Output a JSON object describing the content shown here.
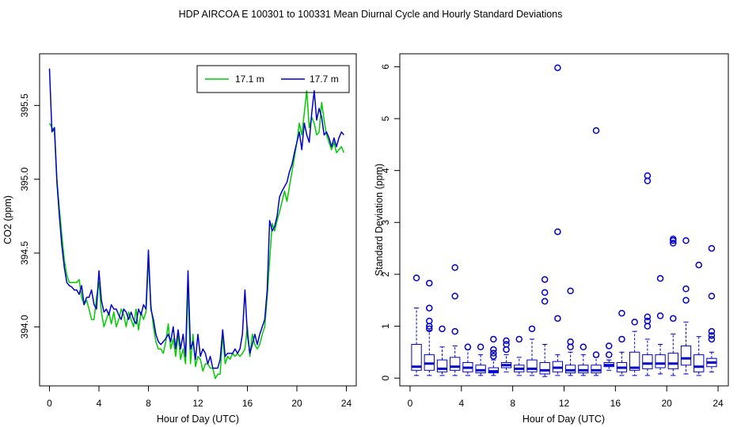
{
  "chart_data": [
    {
      "type": "line",
      "title": "HDP   AIRCOA E   100301 to 100331   Mean Diurnal Cycle and Hourly Standard Deviations",
      "xlabel": "Hour of Day (UTC)",
      "ylabel": "CO2 (ppm)",
      "xlim": [
        -0.8,
        24.8
      ],
      "ylim": [
        393.6,
        395.85
      ],
      "xticks": [
        0,
        4,
        8,
        12,
        16,
        20,
        24
      ],
      "yticks": [
        394.0,
        394.5,
        395.0,
        395.5
      ],
      "ytick_labels": [
        "394.0",
        "394.5",
        "395.0",
        "395.5"
      ],
      "legend_position": "top-right",
      "series": [
        {
          "name": "17.1 m",
          "color": "#00cc00",
          "x": [
            0,
            0.2,
            0.4,
            0.6,
            0.8,
            1.0,
            1.2,
            1.4,
            1.6,
            1.8,
            2.0,
            2.2,
            2.4,
            2.6,
            2.8,
            3.0,
            3.2,
            3.4,
            3.6,
            3.8,
            4.0,
            4.2,
            4.4,
            4.6,
            4.8,
            5.0,
            5.2,
            5.4,
            5.6,
            5.8,
            6.0,
            6.2,
            6.4,
            6.6,
            6.8,
            7.0,
            7.2,
            7.4,
            7.6,
            7.8,
            8.0,
            8.2,
            8.4,
            8.6,
            8.8,
            9.0,
            9.2,
            9.4,
            9.6,
            9.8,
            10.0,
            10.2,
            10.4,
            10.6,
            10.8,
            11.0,
            11.2,
            11.4,
            11.6,
            11.8,
            12.0,
            12.2,
            12.4,
            12.6,
            12.8,
            13.0,
            13.2,
            13.4,
            13.6,
            13.8,
            14.0,
            14.2,
            14.4,
            14.6,
            14.8,
            15.0,
            15.2,
            15.4,
            15.6,
            15.8,
            16.0,
            16.2,
            16.4,
            16.6,
            16.8,
            17.0,
            17.2,
            17.4,
            17.6,
            17.8,
            18.0,
            18.2,
            18.4,
            18.6,
            18.8,
            19.0,
            19.2,
            19.4,
            19.6,
            19.8,
            20.0,
            20.2,
            20.4,
            20.6,
            20.8,
            21.0,
            21.2,
            21.4,
            21.6,
            21.8,
            22.0,
            22.2,
            22.4,
            22.6,
            22.8,
            23.0,
            23.2,
            23.4,
            23.6,
            23.8
          ],
          "values": [
            395.38,
            395.35,
            395.32,
            395.0,
            394.8,
            394.62,
            394.45,
            394.35,
            394.3,
            394.3,
            394.3,
            394.3,
            394.32,
            394.2,
            394.15,
            394.18,
            394.12,
            394.05,
            394.05,
            394.2,
            394.3,
            394.1,
            394.0,
            394.05,
            394.1,
            394.02,
            394.1,
            394.0,
            394.05,
            394.12,
            394.08,
            394.0,
            394.1,
            394.05,
            394.0,
            394.12,
            393.98,
            394.1,
            394.05,
            394.1,
            394.45,
            394.15,
            394.0,
            393.9,
            393.85,
            393.85,
            393.82,
            393.9,
            394.02,
            393.85,
            393.92,
            393.8,
            393.95,
            393.78,
            393.85,
            393.75,
            394.28,
            393.75,
            393.95,
            393.73,
            393.8,
            393.78,
            393.7,
            393.75,
            393.75,
            393.72,
            393.72,
            393.65,
            393.68,
            393.68,
            393.95,
            393.75,
            393.8,
            393.78,
            393.82,
            393.8,
            393.82,
            393.8,
            393.82,
            393.85,
            394.0,
            393.8,
            393.95,
            393.88,
            393.85,
            393.88,
            393.95,
            394.0,
            394.2,
            394.45,
            394.7,
            394.65,
            394.72,
            394.78,
            394.85,
            394.92,
            394.85,
            394.95,
            395.05,
            395.15,
            395.25,
            395.38,
            395.3,
            395.45,
            395.6,
            395.35,
            395.42,
            395.38,
            395.3,
            395.32,
            395.52,
            395.4,
            395.3,
            395.25,
            395.2,
            395.25,
            395.18,
            395.2,
            395.22,
            395.18
          ]
        },
        {
          "name": "17.7 m",
          "color": "#0000cc",
          "x": [
            0,
            0.2,
            0.4,
            0.6,
            0.8,
            1.0,
            1.2,
            1.4,
            1.6,
            1.8,
            2.0,
            2.2,
            2.4,
            2.6,
            2.8,
            3.0,
            3.2,
            3.4,
            3.6,
            3.8,
            4.0,
            4.2,
            4.4,
            4.6,
            4.8,
            5.0,
            5.2,
            5.4,
            5.6,
            5.8,
            6.0,
            6.2,
            6.4,
            6.6,
            6.8,
            7.0,
            7.2,
            7.4,
            7.6,
            7.8,
            8.0,
            8.2,
            8.4,
            8.6,
            8.8,
            9.0,
            9.2,
            9.4,
            9.6,
            9.8,
            10.0,
            10.2,
            10.4,
            10.6,
            10.8,
            11.0,
            11.2,
            11.4,
            11.6,
            11.8,
            12.0,
            12.2,
            12.4,
            12.6,
            12.8,
            13.0,
            13.2,
            13.4,
            13.6,
            13.8,
            14.0,
            14.2,
            14.4,
            14.6,
            14.8,
            15.0,
            15.2,
            15.4,
            15.6,
            15.8,
            16.0,
            16.2,
            16.4,
            16.6,
            16.8,
            17.0,
            17.2,
            17.4,
            17.6,
            17.8,
            18.0,
            18.2,
            18.4,
            18.6,
            18.8,
            19.0,
            19.2,
            19.4,
            19.6,
            19.8,
            20.0,
            20.2,
            20.4,
            20.6,
            20.8,
            21.0,
            21.2,
            21.4,
            21.6,
            21.8,
            22.0,
            22.2,
            22.4,
            22.6,
            22.8,
            23.0,
            23.2,
            23.4,
            23.6,
            23.8
          ],
          "values": [
            395.75,
            395.32,
            395.35,
            394.98,
            394.75,
            394.55,
            394.4,
            394.3,
            394.28,
            394.27,
            394.25,
            394.25,
            394.22,
            394.28,
            394.15,
            394.2,
            394.2,
            394.25,
            394.15,
            394.12,
            394.38,
            394.18,
            394.1,
            394.12,
            394.08,
            394.15,
            394.12,
            394.12,
            394.08,
            394.05,
            394.12,
            394.1,
            394.05,
            394.1,
            394.05,
            394.02,
            394.12,
            394.08,
            394.15,
            394.12,
            394.52,
            394.12,
            394.05,
            393.95,
            393.9,
            393.88,
            393.9,
            393.92,
            393.95,
            393.9,
            394.0,
            393.85,
            393.98,
            393.85,
            393.95,
            393.8,
            394.38,
            393.85,
            393.9,
            393.78,
            393.95,
            393.8,
            393.85,
            393.82,
            393.75,
            393.8,
            393.72,
            393.72,
            393.72,
            393.78,
            393.98,
            393.8,
            393.82,
            393.82,
            393.82,
            393.85,
            393.82,
            393.85,
            393.95,
            394.25,
            393.95,
            393.82,
            393.88,
            393.95,
            393.88,
            393.95,
            394.0,
            394.05,
            394.25,
            394.72,
            394.65,
            394.68,
            394.75,
            394.88,
            394.92,
            394.95,
            394.98,
            395.05,
            395.1,
            395.18,
            395.25,
            395.32,
            395.2,
            395.38,
            395.3,
            395.25,
            395.45,
            395.6,
            395.4,
            395.48,
            395.42,
            395.3,
            395.32,
            395.28,
            395.22,
            395.28,
            395.22,
            395.28,
            395.32,
            395.3
          ]
        }
      ]
    },
    {
      "type": "box",
      "xlabel": "Hour of Day (UTC)",
      "ylabel": "Standard Deviation (ppm)",
      "xlim": [
        -0.8,
        24.8
      ],
      "ylim": [
        -0.15,
        6.25
      ],
      "xticks": [
        0,
        4,
        8,
        12,
        16,
        20,
        24
      ],
      "yticks": [
        0,
        1,
        2,
        3,
        4,
        5,
        6
      ],
      "color": "#0000cc",
      "boxes": [
        {
          "x": 0.5,
          "q1": 0.15,
          "median": 0.22,
          "q3": 0.65,
          "whisker_low": 0.05,
          "whisker_high": 1.35,
          "outliers": [
            1.93
          ]
        },
        {
          "x": 1.5,
          "q1": 0.15,
          "median": 0.28,
          "q3": 0.45,
          "whisker_low": 0.05,
          "whisker_high": 0.92,
          "outliers": [
            0.95,
            1.0,
            1.1,
            1.35,
            1.83
          ]
        },
        {
          "x": 2.5,
          "q1": 0.12,
          "median": 0.18,
          "q3": 0.35,
          "whisker_low": 0.05,
          "whisker_high": 0.6,
          "outliers": [
            0.95
          ]
        },
        {
          "x": 3.5,
          "q1": 0.15,
          "median": 0.22,
          "q3": 0.4,
          "whisker_low": 0.05,
          "whisker_high": 0.62,
          "outliers": [
            0.9,
            1.58,
            2.13
          ]
        },
        {
          "x": 4.5,
          "q1": 0.12,
          "median": 0.2,
          "q3": 0.3,
          "whisker_low": 0.05,
          "whisker_high": 0.55,
          "outliers": [
            0.6
          ]
        },
        {
          "x": 5.5,
          "q1": 0.1,
          "median": 0.15,
          "q3": 0.25,
          "whisker_low": 0.05,
          "whisker_high": 0.45,
          "outliers": [
            0.6
          ]
        },
        {
          "x": 6.5,
          "q1": 0.1,
          "median": 0.13,
          "q3": 0.2,
          "whisker_low": 0.05,
          "whisker_high": 0.35,
          "outliers": [
            0.42,
            0.48,
            0.55,
            0.75
          ]
        },
        {
          "x": 7.5,
          "q1": 0.2,
          "median": 0.25,
          "q3": 0.3,
          "whisker_low": 0.12,
          "whisker_high": 0.45,
          "outliers": [
            0.55,
            0.65,
            0.72
          ]
        },
        {
          "x": 8.5,
          "q1": 0.12,
          "median": 0.18,
          "q3": 0.25,
          "whisker_low": 0.05,
          "whisker_high": 0.4,
          "outliers": [
            0.75
          ]
        },
        {
          "x": 9.5,
          "q1": 0.12,
          "median": 0.18,
          "q3": 0.35,
          "whisker_low": 0.05,
          "whisker_high": 0.75,
          "outliers": [
            0.95
          ]
        },
        {
          "x": 10.5,
          "q1": 0.08,
          "median": 0.15,
          "q3": 0.3,
          "whisker_low": 0.03,
          "whisker_high": 0.65,
          "outliers": [
            1.48,
            1.65,
            1.9
          ]
        },
        {
          "x": 11.5,
          "q1": 0.12,
          "median": 0.2,
          "q3": 0.32,
          "whisker_low": 0.05,
          "whisker_high": 0.45,
          "outliers": [
            1.15,
            2.82,
            5.98
          ]
        },
        {
          "x": 12.5,
          "q1": 0.1,
          "median": 0.15,
          "q3": 0.25,
          "whisker_low": 0.05,
          "whisker_high": 0.5,
          "outliers": [
            0.6,
            0.7,
            1.68
          ]
        },
        {
          "x": 13.5,
          "q1": 0.1,
          "median": 0.15,
          "q3": 0.25,
          "whisker_low": 0.05,
          "whisker_high": 0.45,
          "outliers": [
            0.6
          ]
        },
        {
          "x": 14.5,
          "q1": 0.1,
          "median": 0.15,
          "q3": 0.25,
          "whisker_low": 0.05,
          "whisker_high": 0.4,
          "outliers": [
            0.45,
            4.77
          ]
        },
        {
          "x": 15.5,
          "q1": 0.22,
          "median": 0.25,
          "q3": 0.3,
          "whisker_low": 0.15,
          "whisker_high": 0.35,
          "outliers": [
            0.45,
            0.62
          ]
        },
        {
          "x": 16.5,
          "q1": 0.12,
          "median": 0.2,
          "q3": 0.3,
          "whisker_low": 0.05,
          "whisker_high": 0.5,
          "outliers": [
            0.75,
            1.25
          ]
        },
        {
          "x": 17.5,
          "q1": 0.15,
          "median": 0.2,
          "q3": 0.5,
          "whisker_low": 0.05,
          "whisker_high": 0.9,
          "outliers": [
            1.08
          ]
        },
        {
          "x": 18.5,
          "q1": 0.18,
          "median": 0.28,
          "q3": 0.45,
          "whisker_low": 0.05,
          "whisker_high": 0.75,
          "outliers": [
            1.0,
            1.1,
            1.18,
            3.8,
            3.9
          ]
        },
        {
          "x": 19.5,
          "q1": 0.2,
          "median": 0.28,
          "q3": 0.45,
          "whisker_low": 0.08,
          "whisker_high": 0.65,
          "outliers": [
            1.2,
            1.92
          ]
        },
        {
          "x": 20.5,
          "q1": 0.18,
          "median": 0.28,
          "q3": 0.48,
          "whisker_low": 0.05,
          "whisker_high": 0.85,
          "outliers": [
            1.15,
            2.6,
            2.65,
            2.68
          ]
        },
        {
          "x": 21.5,
          "q1": 0.25,
          "median": 0.38,
          "q3": 0.62,
          "whisker_low": 0.08,
          "whisker_high": 1.08,
          "outliers": [
            1.5,
            1.72,
            2.65
          ]
        },
        {
          "x": 22.5,
          "q1": 0.12,
          "median": 0.22,
          "q3": 0.45,
          "whisker_low": 0.05,
          "whisker_high": 0.8,
          "outliers": [
            2.18
          ]
        },
        {
          "x": 23.5,
          "q1": 0.22,
          "median": 0.3,
          "q3": 0.38,
          "whisker_low": 0.12,
          "whisker_high": 0.5,
          "outliers": [
            0.75,
            0.82,
            0.9,
            1.58,
            2.5
          ]
        }
      ]
    }
  ]
}
